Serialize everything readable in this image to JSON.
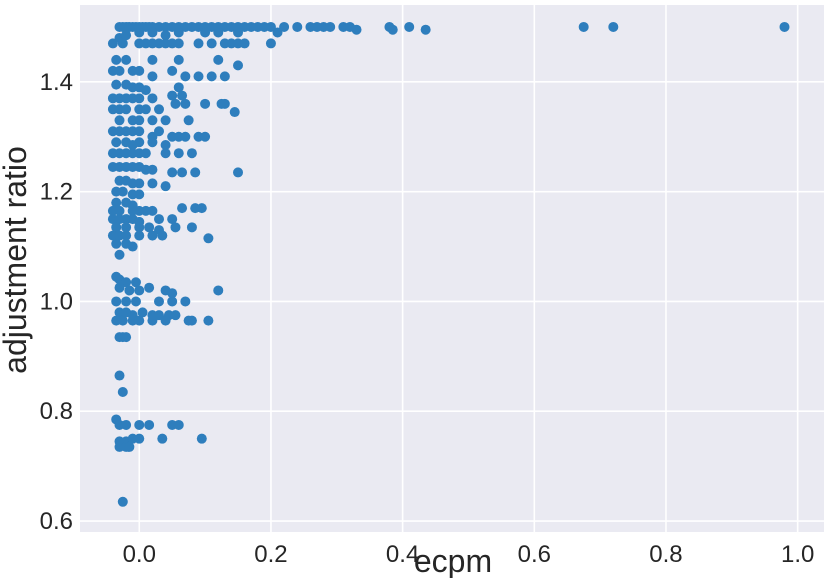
{
  "chart_data": {
    "type": "scatter",
    "title": "",
    "xlabel": "ecpm",
    "ylabel": "adjustment ratio",
    "xlim": [
      -0.09,
      1.04
    ],
    "ylim": [
      0.58,
      1.54
    ],
    "xticks": [
      0.0,
      0.2,
      0.4,
      0.6,
      0.8,
      1.0
    ],
    "yticks": [
      0.6,
      0.8,
      1.0,
      1.2,
      1.4
    ],
    "xtick_labels": [
      "0.0",
      "0.2",
      "0.4",
      "0.6",
      "0.8",
      "1.0"
    ],
    "ytick_labels": [
      "0.6",
      "0.8",
      "1.0",
      "1.2",
      "1.4"
    ],
    "grid": true,
    "background": "#EAEAF2",
    "point_color": "#2E7EBD",
    "points": [
      [
        -0.03,
        1.5
      ],
      [
        -0.025,
        1.5
      ],
      [
        -0.02,
        1.5
      ],
      [
        -0.015,
        1.5
      ],
      [
        -0.01,
        1.5
      ],
      [
        -0.005,
        1.5
      ],
      [
        0.0,
        1.5
      ],
      [
        0.005,
        1.5
      ],
      [
        0.01,
        1.5
      ],
      [
        0.015,
        1.5
      ],
      [
        0.02,
        1.5
      ],
      [
        0.03,
        1.5
      ],
      [
        0.04,
        1.5
      ],
      [
        0.05,
        1.5
      ],
      [
        0.06,
        1.5
      ],
      [
        0.07,
        1.5
      ],
      [
        0.08,
        1.5
      ],
      [
        0.09,
        1.5
      ],
      [
        0.1,
        1.5
      ],
      [
        0.11,
        1.5
      ],
      [
        0.12,
        1.5
      ],
      [
        0.13,
        1.5
      ],
      [
        0.14,
        1.5
      ],
      [
        0.15,
        1.5
      ],
      [
        0.16,
        1.5
      ],
      [
        0.17,
        1.5
      ],
      [
        0.18,
        1.5
      ],
      [
        0.19,
        1.5
      ],
      [
        0.2,
        1.5
      ],
      [
        0.22,
        1.5
      ],
      [
        0.24,
        1.5
      ],
      [
        0.26,
        1.5
      ],
      [
        0.27,
        1.5
      ],
      [
        0.28,
        1.5
      ],
      [
        0.29,
        1.5
      ],
      [
        0.31,
        1.5
      ],
      [
        0.32,
        1.5
      ],
      [
        0.33,
        1.495
      ],
      [
        0.38,
        1.5
      ],
      [
        0.385,
        1.495
      ],
      [
        0.41,
        1.5
      ],
      [
        0.435,
        1.495
      ],
      [
        0.675,
        1.5
      ],
      [
        0.72,
        1.5
      ],
      [
        0.98,
        1.5
      ],
      [
        -0.03,
        1.48
      ],
      [
        -0.02,
        1.485
      ],
      [
        0.0,
        1.49
      ],
      [
        0.02,
        1.49
      ],
      [
        0.04,
        1.485
      ],
      [
        0.06,
        1.49
      ],
      [
        0.1,
        1.49
      ],
      [
        0.12,
        1.49
      ],
      [
        0.15,
        1.49
      ],
      [
        0.21,
        1.49
      ],
      [
        -0.04,
        1.47
      ],
      [
        -0.025,
        1.47
      ],
      [
        0.0,
        1.47
      ],
      [
        0.01,
        1.47
      ],
      [
        0.02,
        1.47
      ],
      [
        0.03,
        1.47
      ],
      [
        0.04,
        1.47
      ],
      [
        0.05,
        1.47
      ],
      [
        0.06,
        1.47
      ],
      [
        0.09,
        1.47
      ],
      [
        0.11,
        1.47
      ],
      [
        0.13,
        1.47
      ],
      [
        0.14,
        1.47
      ],
      [
        0.15,
        1.47
      ],
      [
        0.16,
        1.47
      ],
      [
        0.2,
        1.47
      ],
      [
        -0.035,
        1.44
      ],
      [
        -0.02,
        1.44
      ],
      [
        0.02,
        1.44
      ],
      [
        0.06,
        1.44
      ],
      [
        0.12,
        1.44
      ],
      [
        0.15,
        1.43
      ],
      [
        -0.04,
        1.42
      ],
      [
        -0.03,
        1.42
      ],
      [
        -0.01,
        1.42
      ],
      [
        0.0,
        1.42
      ],
      [
        0.02,
        1.41
      ],
      [
        0.05,
        1.42
      ],
      [
        0.07,
        1.41
      ],
      [
        0.09,
        1.41
      ],
      [
        0.11,
        1.41
      ],
      [
        0.13,
        1.41
      ],
      [
        -0.035,
        1.395
      ],
      [
        -0.02,
        1.395
      ],
      [
        -0.01,
        1.39
      ],
      [
        0.0,
        1.39
      ],
      [
        0.01,
        1.385
      ],
      [
        0.06,
        1.39
      ],
      [
        -0.04,
        1.37
      ],
      [
        -0.03,
        1.37
      ],
      [
        -0.02,
        1.37
      ],
      [
        -0.01,
        1.37
      ],
      [
        0.0,
        1.37
      ],
      [
        0.02,
        1.37
      ],
      [
        0.05,
        1.375
      ],
      [
        0.065,
        1.375
      ],
      [
        0.1,
        1.36
      ],
      [
        0.13,
        1.36
      ],
      [
        -0.04,
        1.35
      ],
      [
        -0.03,
        1.35
      ],
      [
        -0.02,
        1.35
      ],
      [
        0.0,
        1.35
      ],
      [
        0.01,
        1.35
      ],
      [
        0.03,
        1.35
      ],
      [
        0.055,
        1.36
      ],
      [
        0.07,
        1.36
      ],
      [
        0.125,
        1.36
      ],
      [
        0.145,
        1.345
      ],
      [
        -0.03,
        1.33
      ],
      [
        -0.01,
        1.33
      ],
      [
        0.0,
        1.33
      ],
      [
        0.02,
        1.33
      ],
      [
        0.04,
        1.33
      ],
      [
        0.075,
        1.33
      ],
      [
        -0.04,
        1.31
      ],
      [
        -0.03,
        1.31
      ],
      [
        -0.02,
        1.31
      ],
      [
        -0.01,
        1.31
      ],
      [
        0.0,
        1.31
      ],
      [
        0.02,
        1.3
      ],
      [
        0.03,
        1.31
      ],
      [
        0.05,
        1.3
      ],
      [
        0.06,
        1.3
      ],
      [
        0.07,
        1.3
      ],
      [
        0.09,
        1.3
      ],
      [
        0.1,
        1.3
      ],
      [
        -0.035,
        1.29
      ],
      [
        -0.02,
        1.29
      ],
      [
        -0.01,
        1.285
      ],
      [
        0.0,
        1.29
      ],
      [
        0.02,
        1.29
      ],
      [
        0.04,
        1.285
      ],
      [
        -0.04,
        1.27
      ],
      [
        -0.03,
        1.27
      ],
      [
        -0.02,
        1.27
      ],
      [
        -0.01,
        1.27
      ],
      [
        0.0,
        1.27
      ],
      [
        0.01,
        1.27
      ],
      [
        0.04,
        1.27
      ],
      [
        0.06,
        1.27
      ],
      [
        0.08,
        1.27
      ],
      [
        -0.04,
        1.245
      ],
      [
        -0.03,
        1.245
      ],
      [
        -0.02,
        1.245
      ],
      [
        -0.01,
        1.245
      ],
      [
        0.0,
        1.245
      ],
      [
        0.01,
        1.24
      ],
      [
        0.02,
        1.24
      ],
      [
        0.05,
        1.235
      ],
      [
        0.065,
        1.235
      ],
      [
        0.085,
        1.235
      ],
      [
        0.15,
        1.235
      ],
      [
        -0.03,
        1.22
      ],
      [
        -0.02,
        1.22
      ],
      [
        -0.01,
        1.215
      ],
      [
        0.0,
        1.215
      ],
      [
        0.02,
        1.215
      ],
      [
        0.04,
        1.21
      ],
      [
        -0.035,
        1.2
      ],
      [
        -0.025,
        1.2
      ],
      [
        -0.01,
        1.195
      ],
      [
        0.0,
        1.195
      ],
      [
        -0.035,
        1.18
      ],
      [
        -0.02,
        1.18
      ],
      [
        -0.01,
        1.175
      ],
      [
        -0.04,
        1.165
      ],
      [
        -0.03,
        1.165
      ],
      [
        -0.01,
        1.165
      ],
      [
        0.0,
        1.165
      ],
      [
        0.01,
        1.165
      ],
      [
        0.02,
        1.165
      ],
      [
        0.065,
        1.17
      ],
      [
        0.085,
        1.17
      ],
      [
        0.095,
        1.17
      ],
      [
        -0.04,
        1.15
      ],
      [
        -0.03,
        1.15
      ],
      [
        -0.02,
        1.15
      ],
      [
        -0.01,
        1.15
      ],
      [
        0.0,
        1.145
      ],
      [
        0.03,
        1.15
      ],
      [
        0.05,
        1.15
      ],
      [
        -0.035,
        1.135
      ],
      [
        -0.02,
        1.135
      ],
      [
        0.0,
        1.135
      ],
      [
        0.015,
        1.135
      ],
      [
        0.03,
        1.13
      ],
      [
        0.055,
        1.135
      ],
      [
        0.08,
        1.135
      ],
      [
        -0.04,
        1.12
      ],
      [
        -0.03,
        1.12
      ],
      [
        -0.02,
        1.12
      ],
      [
        0.0,
        1.12
      ],
      [
        0.02,
        1.12
      ],
      [
        0.035,
        1.12
      ],
      [
        0.105,
        1.115
      ],
      [
        -0.035,
        1.105
      ],
      [
        -0.02,
        1.105
      ],
      [
        -0.01,
        1.1
      ],
      [
        -0.03,
        1.085
      ],
      [
        -0.035,
        1.045
      ],
      [
        -0.03,
        1.04
      ],
      [
        -0.02,
        1.035
      ],
      [
        -0.005,
        1.035
      ],
      [
        -0.03,
        1.025
      ],
      [
        -0.015,
        1.02
      ],
      [
        0.0,
        1.02
      ],
      [
        0.015,
        1.025
      ],
      [
        0.04,
        1.02
      ],
      [
        0.05,
        1.015
      ],
      [
        0.12,
        1.02
      ],
      [
        -0.035,
        1.0
      ],
      [
        -0.02,
        1.0
      ],
      [
        -0.005,
        1.0
      ],
      [
        0.03,
        1.0
      ],
      [
        0.05,
        1.0
      ],
      [
        0.07,
        1.0
      ],
      [
        -0.03,
        0.98
      ],
      [
        -0.02,
        0.98
      ],
      [
        -0.01,
        0.975
      ],
      [
        0.005,
        0.98
      ],
      [
        0.02,
        0.975
      ],
      [
        0.03,
        0.975
      ],
      [
        0.045,
        0.975
      ],
      [
        0.055,
        0.975
      ],
      [
        -0.035,
        0.965
      ],
      [
        -0.025,
        0.965
      ],
      [
        -0.01,
        0.965
      ],
      [
        0.0,
        0.965
      ],
      [
        0.02,
        0.965
      ],
      [
        0.04,
        0.965
      ],
      [
        0.08,
        0.965
      ],
      [
        0.075,
        0.965
      ],
      [
        0.105,
        0.965
      ],
      [
        -0.03,
        0.935
      ],
      [
        -0.025,
        0.935
      ],
      [
        -0.02,
        0.935
      ],
      [
        -0.03,
        0.865
      ],
      [
        -0.025,
        0.835
      ],
      [
        -0.035,
        0.785
      ],
      [
        -0.03,
        0.775
      ],
      [
        -0.02,
        0.775
      ],
      [
        0.0,
        0.775
      ],
      [
        0.015,
        0.775
      ],
      [
        0.05,
        0.775
      ],
      [
        0.06,
        0.775
      ],
      [
        -0.03,
        0.745
      ],
      [
        -0.02,
        0.745
      ],
      [
        -0.01,
        0.75
      ],
      [
        0.0,
        0.75
      ],
      [
        0.035,
        0.75
      ],
      [
        0.095,
        0.75
      ],
      [
        -0.03,
        0.735
      ],
      [
        -0.02,
        0.735
      ],
      [
        -0.015,
        0.735
      ],
      [
        -0.025,
        0.635
      ]
    ]
  }
}
